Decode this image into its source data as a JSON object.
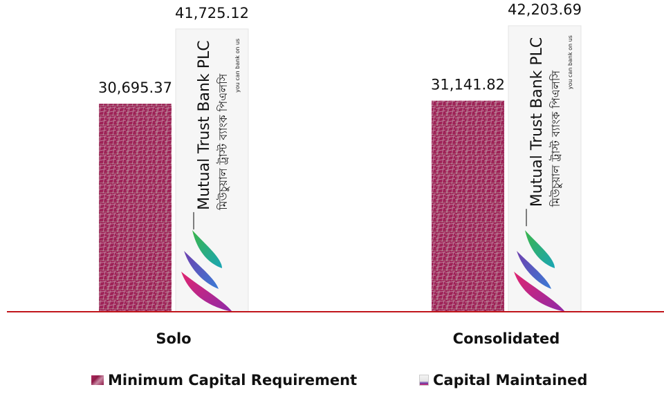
{
  "chart_data": {
    "type": "bar",
    "categories": [
      "Solo",
      "Consolidated"
    ],
    "series": [
      {
        "name": "Minimum Capital Requirement",
        "values": [
          30695.37,
          31141.82
        ],
        "labels": [
          "30,695.37",
          "31,141.82"
        ]
      },
      {
        "name": "Capital Maintained",
        "values": [
          41725.12,
          42203.69
        ],
        "labels": [
          "41,725.12",
          "42,203.69"
        ]
      }
    ],
    "ylim": [
      0,
      46000
    ],
    "grid": false,
    "legend": "bottom",
    "colors": {
      "mcr": "#9e2257",
      "mcr_texture": "#c9a3b3",
      "axis": "#c0141a",
      "cm_bg": "#f5f5f5"
    }
  },
  "bank_label": {
    "name": "Mutual Trust Bank PLC",
    "bangla": "মিউচুয়াল ট্রাস্ট ব্যাংক পিএলসি",
    "tagline": "you can bank on us"
  }
}
